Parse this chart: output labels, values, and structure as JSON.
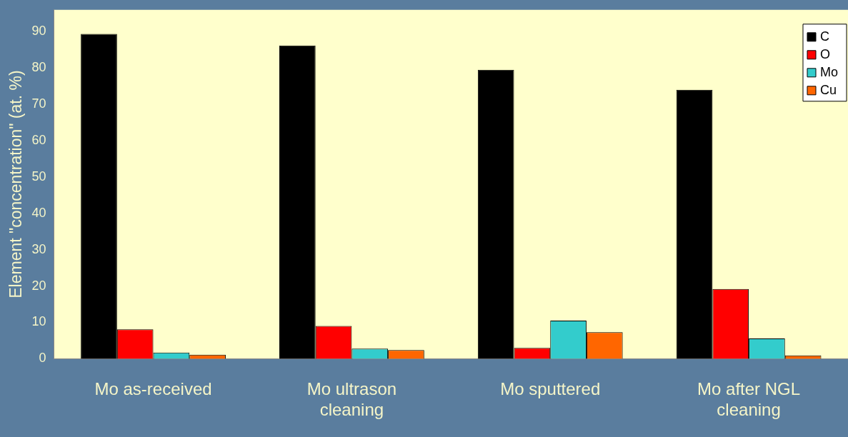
{
  "chart_data": {
    "type": "bar",
    "ylabel": "Element \"concentration\" (at. %)",
    "categories": [
      "Mo as-received",
      "Mo ultrason cleaning",
      "Mo sputtered",
      "Mo after NGL cleaning"
    ],
    "series": [
      {
        "name": "C",
        "color": "#000000",
        "values": [
          89.4,
          86.2,
          79.5,
          74.0
        ]
      },
      {
        "name": "O",
        "color": "#ff0000",
        "values": [
          8.1,
          9.0,
          3.0,
          19.2
        ]
      },
      {
        "name": "Mo",
        "color": "#33cccc",
        "values": [
          1.7,
          2.8,
          10.5,
          5.6
        ]
      },
      {
        "name": "Cu",
        "color": "#ff6600",
        "values": [
          1.1,
          2.4,
          7.3,
          0.9
        ]
      }
    ],
    "ylim": [
      0,
      96
    ],
    "yticks": [
      0,
      10,
      20,
      30,
      40,
      50,
      60,
      70,
      80,
      90
    ],
    "grid": false,
    "legend": "top right"
  }
}
